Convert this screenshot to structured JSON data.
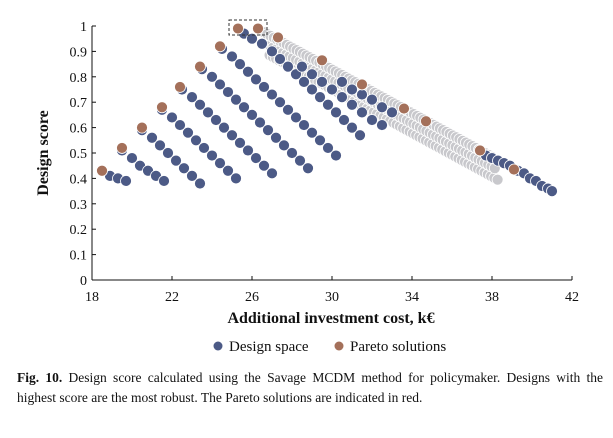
{
  "chart_data": {
    "type": "scatter",
    "xlabel": "Additional investment cost, k€",
    "ylabel": "Design score",
    "xlim": [
      18,
      42
    ],
    "ylim": [
      0,
      1
    ],
    "xticks": [
      "18",
      "22",
      "26",
      "30",
      "34",
      "38",
      "42"
    ],
    "yticks": [
      "0",
      "0.1",
      "0.2",
      "0.3",
      "0.4",
      "0.5",
      "0.6",
      "0.7",
      "0.8",
      "0.9",
      "1"
    ],
    "grid": false,
    "legend_position": "bottom",
    "colors": {
      "design_space": "#4c5a86",
      "design_space_light": "#c8c8cc",
      "pareto": "#a4705a",
      "highlight_box": "#333333"
    },
    "series": [
      {
        "name": "Design space",
        "points": [
          [
            18.5,
            0.43
          ],
          [
            18.9,
            0.41
          ],
          [
            19.3,
            0.4
          ],
          [
            19.7,
            0.39
          ],
          [
            19.5,
            0.51
          ],
          [
            20.0,
            0.48
          ],
          [
            20.4,
            0.45
          ],
          [
            20.8,
            0.43
          ],
          [
            21.2,
            0.41
          ],
          [
            21.6,
            0.39
          ],
          [
            20.5,
            0.59
          ],
          [
            21.0,
            0.56
          ],
          [
            21.4,
            0.53
          ],
          [
            21.8,
            0.5
          ],
          [
            22.2,
            0.47
          ],
          [
            22.6,
            0.44
          ],
          [
            23.0,
            0.41
          ],
          [
            23.4,
            0.38
          ],
          [
            21.5,
            0.67
          ],
          [
            22.0,
            0.64
          ],
          [
            22.4,
            0.61
          ],
          [
            22.8,
            0.58
          ],
          [
            23.2,
            0.55
          ],
          [
            23.6,
            0.52
          ],
          [
            24.0,
            0.49
          ],
          [
            24.4,
            0.46
          ],
          [
            24.8,
            0.43
          ],
          [
            25.2,
            0.4
          ],
          [
            22.5,
            0.75
          ],
          [
            23.0,
            0.72
          ],
          [
            23.4,
            0.69
          ],
          [
            23.8,
            0.66
          ],
          [
            24.2,
            0.63
          ],
          [
            24.6,
            0.6
          ],
          [
            25.0,
            0.57
          ],
          [
            25.4,
            0.54
          ],
          [
            25.8,
            0.51
          ],
          [
            26.2,
            0.48
          ],
          [
            26.6,
            0.45
          ],
          [
            27.0,
            0.42
          ],
          [
            23.5,
            0.83
          ],
          [
            24.0,
            0.8
          ],
          [
            24.4,
            0.77
          ],
          [
            24.8,
            0.74
          ],
          [
            25.2,
            0.71
          ],
          [
            25.6,
            0.68
          ],
          [
            26.0,
            0.65
          ],
          [
            26.4,
            0.62
          ],
          [
            26.8,
            0.59
          ],
          [
            27.2,
            0.56
          ],
          [
            27.6,
            0.53
          ],
          [
            28.0,
            0.5
          ],
          [
            28.4,
            0.47
          ],
          [
            28.8,
            0.44
          ],
          [
            24.5,
            0.91
          ],
          [
            25.0,
            0.88
          ],
          [
            25.4,
            0.85
          ],
          [
            25.8,
            0.82
          ],
          [
            26.2,
            0.79
          ],
          [
            26.6,
            0.76
          ],
          [
            27.0,
            0.73
          ],
          [
            27.4,
            0.7
          ],
          [
            27.8,
            0.67
          ],
          [
            28.2,
            0.64
          ],
          [
            28.6,
            0.61
          ],
          [
            29.0,
            0.58
          ],
          [
            29.4,
            0.55
          ],
          [
            29.8,
            0.52
          ],
          [
            30.2,
            0.49
          ],
          [
            25.6,
            0.97
          ],
          [
            26.0,
            0.95
          ],
          [
            26.5,
            0.93
          ],
          [
            27.0,
            0.9
          ],
          [
            27.4,
            0.87
          ],
          [
            27.8,
            0.84
          ],
          [
            28.2,
            0.81
          ],
          [
            28.6,
            0.78
          ],
          [
            29.0,
            0.75
          ],
          [
            29.4,
            0.72
          ],
          [
            29.8,
            0.69
          ],
          [
            30.2,
            0.66
          ],
          [
            30.6,
            0.63
          ],
          [
            31.0,
            0.6
          ],
          [
            31.4,
            0.57
          ],
          [
            28.5,
            0.84
          ],
          [
            29.0,
            0.81
          ],
          [
            29.5,
            0.78
          ],
          [
            30.0,
            0.75
          ],
          [
            30.5,
            0.72
          ],
          [
            31.0,
            0.69
          ],
          [
            31.5,
            0.66
          ],
          [
            32.0,
            0.63
          ],
          [
            32.5,
            0.61
          ],
          [
            30.5,
            0.78
          ],
          [
            31.0,
            0.75
          ],
          [
            31.5,
            0.73
          ],
          [
            32.0,
            0.71
          ],
          [
            32.5,
            0.68
          ],
          [
            33.0,
            0.66
          ],
          [
            37.7,
            0.49
          ],
          [
            38.0,
            0.48
          ],
          [
            38.3,
            0.47
          ],
          [
            38.6,
            0.46
          ],
          [
            38.9,
            0.45
          ],
          [
            39.3,
            0.43
          ],
          [
            39.6,
            0.42
          ],
          [
            39.9,
            0.4
          ],
          [
            40.2,
            0.39
          ],
          [
            40.5,
            0.37
          ],
          [
            40.8,
            0.36
          ],
          [
            41.0,
            0.35
          ]
        ]
      },
      {
        "name": "Pareto solutions",
        "points": [
          [
            18.5,
            0.43
          ],
          [
            19.5,
            0.52
          ],
          [
            20.5,
            0.6
          ],
          [
            21.5,
            0.68
          ],
          [
            22.4,
            0.76
          ],
          [
            23.4,
            0.84
          ],
          [
            24.4,
            0.92
          ],
          [
            25.3,
            0.99
          ],
          [
            26.3,
            0.99
          ],
          [
            27.3,
            0.955
          ],
          [
            29.5,
            0.865
          ],
          [
            31.5,
            0.77
          ],
          [
            33.6,
            0.675
          ],
          [
            34.7,
            0.625
          ],
          [
            37.4,
            0.51
          ],
          [
            39.1,
            0.435
          ]
        ]
      }
    ]
  },
  "legend": {
    "design_space": "Design space",
    "pareto": "Pareto solutions"
  },
  "caption": {
    "label": "Fig. 10.",
    "text": "Design score calculated using the Savage MCDM method for policymaker. Designs with the highest score are the most robust. The Pareto solutions are indicated in red."
  }
}
